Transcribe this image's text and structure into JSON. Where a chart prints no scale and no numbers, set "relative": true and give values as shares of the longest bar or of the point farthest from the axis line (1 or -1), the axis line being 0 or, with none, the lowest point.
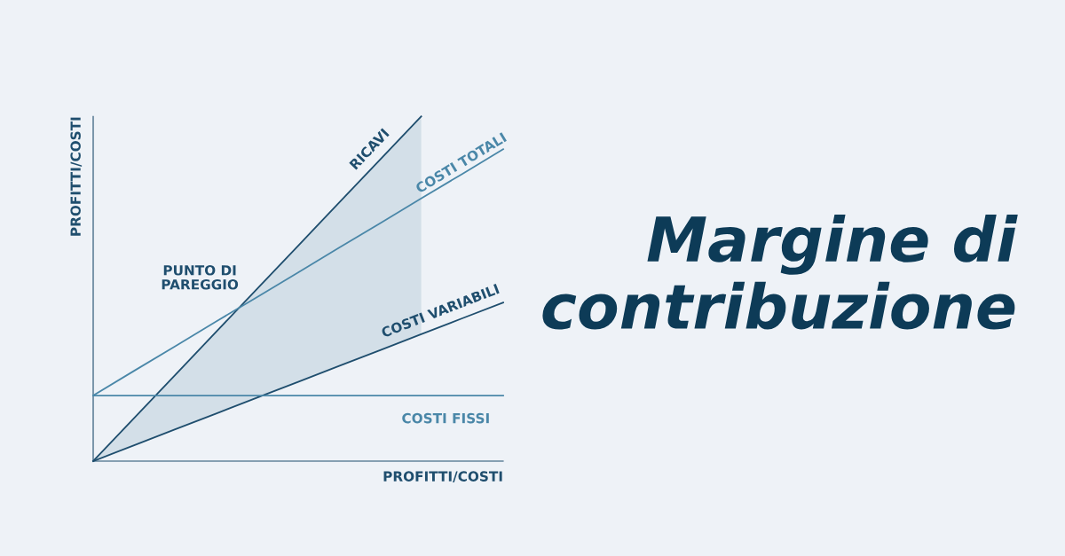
{
  "chart_data": {
    "type": "line",
    "title": "Margine di\ncontribuzione",
    "xlabel": "PROFITTI/COSTI",
    "ylabel": "PROFITTI/COSTI",
    "relative": true,
    "legend": false,
    "categories": [
      null,
      null,
      null,
      null,
      null,
      null,
      null,
      null,
      null,
      null,
      null
    ],
    "series": [
      {
        "name": "RICAVI",
        "color": "#1f4e6e",
        "values": [
          0,
          0.125,
          0.25,
          0.375,
          0.5,
          0.625,
          0.75,
          0.875,
          1.0,
          null,
          null
        ],
        "lower": [
          0,
          0.046,
          0.092,
          0.138,
          0.184,
          0.23,
          0.276,
          0.322,
          0.368,
          null,
          null
        ],
        "upper": [
          0,
          0.125,
          0.25,
          0.375,
          0.5,
          0.625,
          0.75,
          0.875,
          1.0,
          null,
          null
        ]
      },
      {
        "name": "COSTI TOTALI",
        "color": "#4a87a8",
        "values": [
          0.19,
          0.262,
          0.333,
          0.405,
          0.476,
          0.547,
          0.619,
          0.69,
          0.762,
          0.833,
          0.905
        ]
      },
      {
        "name": "COSTI VARIABILI",
        "color": "#1f4e6e",
        "values": [
          0,
          0.046,
          0.092,
          0.138,
          0.184,
          0.23,
          0.276,
          0.322,
          0.368,
          0.414,
          0.46
        ]
      },
      {
        "name": "COSTI FISSI",
        "color": "#4a87a8",
        "values": [
          0.19,
          0.19,
          0.19,
          0.19,
          0.19,
          0.19,
          0.19,
          0.19,
          0.19,
          0.19,
          0.19
        ]
      }
    ],
    "annotations": [
      "PUNTO DI\nPAREGGIO"
    ]
  }
}
